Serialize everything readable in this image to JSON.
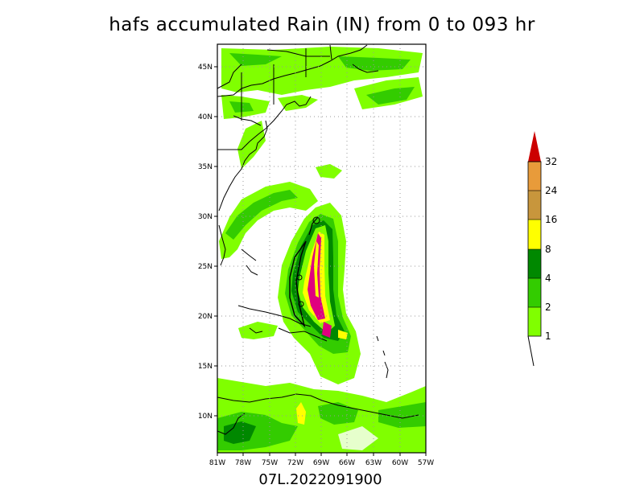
{
  "title": "hafs accumulated Rain (IN) from 0 to 093 hr",
  "storm_id": "07L.2022091900",
  "map": {
    "lon_ticks": [
      "81W",
      "78W",
      "75W",
      "72W",
      "69W",
      "66W",
      "63W",
      "60W",
      "57W"
    ],
    "lat_ticks": [
      "45N",
      "40N",
      "35N",
      "30N",
      "25N",
      "20N",
      "15N",
      "10N"
    ]
  },
  "colorbar": {
    "levels": [
      "1",
      "2",
      "4",
      "8",
      "16",
      "24",
      "32"
    ],
    "colors": [
      "#80ff00",
      "#33cc00",
      "#008800",
      "#ffff00",
      "#c8963c",
      "#e89b3a",
      "#cc0000"
    ]
  },
  "colors": {
    "light_green": "#80ff00",
    "medium_green": "#33cc00",
    "dark_green": "#008800",
    "yellow": "#ffff00",
    "magenta": "#e0007f",
    "red_tip": "#cc0000"
  }
}
